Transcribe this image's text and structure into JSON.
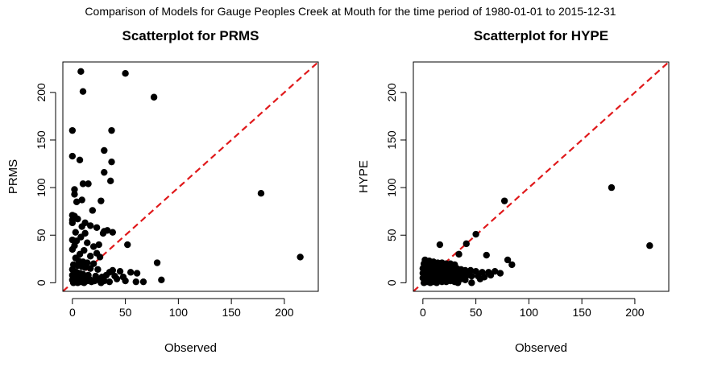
{
  "suptitle": "Comparison of Models for Gauge Peoples Creek at Mouth for the time period of 1980-01-01 to 2015-12-31",
  "chart_data": [
    {
      "type": "scatter",
      "title": "Scatterplot for PRMS",
      "xlabel": "Observed",
      "ylabel": "PRMS",
      "xlim": [
        -9,
        232
      ],
      "ylim": [
        -9,
        232
      ],
      "xticks": [
        0,
        50,
        100,
        150,
        200
      ],
      "yticks": [
        0,
        50,
        100,
        150,
        200
      ],
      "reference_line": {
        "type": "1:1",
        "color": "#e0191b",
        "style": "dashed"
      },
      "point_color": "#000000",
      "points": [
        [
          8,
          222
        ],
        [
          50,
          220
        ],
        [
          10,
          201
        ],
        [
          77,
          195
        ],
        [
          0,
          160
        ],
        [
          37,
          160
        ],
        [
          0,
          133
        ],
        [
          30,
          139
        ],
        [
          7,
          129
        ],
        [
          37,
          127
        ],
        [
          30,
          116
        ],
        [
          36,
          107
        ],
        [
          10,
          104
        ],
        [
          15,
          104
        ],
        [
          2,
          98
        ],
        [
          2,
          93
        ],
        [
          9,
          87
        ],
        [
          27,
          86
        ],
        [
          4,
          85
        ],
        [
          19,
          76
        ],
        [
          0,
          71
        ],
        [
          2,
          70
        ],
        [
          0,
          66
        ],
        [
          5,
          67
        ],
        [
          0,
          63
        ],
        [
          12,
          63
        ],
        [
          17,
          60
        ],
        [
          23,
          58
        ],
        [
          9,
          59
        ],
        [
          33,
          55
        ],
        [
          38,
          53
        ],
        [
          3,
          53
        ],
        [
          12,
          52
        ],
        [
          29,
          52
        ],
        [
          30,
          54
        ],
        [
          8,
          48
        ],
        [
          0,
          45
        ],
        [
          4,
          44
        ],
        [
          14,
          42
        ],
        [
          52,
          40
        ],
        [
          25,
          40
        ],
        [
          2,
          39
        ],
        [
          20,
          38
        ],
        [
          0,
          35
        ],
        [
          11,
          34
        ],
        [
          23,
          31
        ],
        [
          7,
          30
        ],
        [
          17,
          28
        ],
        [
          26,
          27
        ],
        [
          3,
          26
        ],
        [
          6,
          23
        ],
        [
          10,
          22
        ],
        [
          14,
          21
        ],
        [
          20,
          20
        ],
        [
          80,
          21
        ],
        [
          1,
          19
        ],
        [
          5,
          18
        ],
        [
          9,
          17
        ],
        [
          12,
          16
        ],
        [
          17,
          15
        ],
        [
          24,
          14
        ],
        [
          38,
          13
        ],
        [
          45,
          12
        ],
        [
          55,
          11
        ],
        [
          61,
          10
        ],
        [
          35,
          11
        ],
        [
          0,
          14
        ],
        [
          2,
          12
        ],
        [
          4,
          11
        ],
        [
          7,
          10
        ],
        [
          10,
          9
        ],
        [
          15,
          8
        ],
        [
          22,
          7
        ],
        [
          28,
          6
        ],
        [
          32,
          8
        ],
        [
          40,
          7
        ],
        [
          48,
          6
        ],
        [
          0,
          8
        ],
        [
          3,
          7
        ],
        [
          6,
          6
        ],
        [
          9,
          5
        ],
        [
          13,
          4
        ],
        [
          17,
          3
        ],
        [
          21,
          2
        ],
        [
          25,
          3
        ],
        [
          30,
          2
        ],
        [
          35,
          1
        ],
        [
          42,
          4
        ],
        [
          50,
          2
        ],
        [
          60,
          1
        ],
        [
          67,
          1
        ],
        [
          84,
          3
        ],
        [
          0,
          3
        ],
        [
          2,
          2
        ],
        [
          4,
          1
        ],
        [
          1,
          0
        ],
        [
          5,
          0
        ],
        [
          8,
          1
        ],
        [
          11,
          0
        ],
        [
          14,
          2
        ],
        [
          18,
          1
        ],
        [
          27,
          0
        ],
        [
          178,
          94
        ],
        [
          215,
          27
        ]
      ]
    },
    {
      "type": "scatter",
      "title": "Scatterplot for HYPE",
      "xlabel": "Observed",
      "ylabel": "HYPE",
      "xlim": [
        -9,
        232
      ],
      "ylim": [
        -9,
        232
      ],
      "xticks": [
        0,
        50,
        100,
        150,
        200
      ],
      "yticks": [
        0,
        50,
        100,
        150,
        200
      ],
      "reference_line": {
        "type": "1:1",
        "color": "#e0191b",
        "style": "dashed"
      },
      "point_color": "#000000",
      "points": [
        [
          178,
          100
        ],
        [
          77,
          86
        ],
        [
          50,
          51
        ],
        [
          16,
          40
        ],
        [
          41,
          41
        ],
        [
          214,
          39
        ],
        [
          34,
          30
        ],
        [
          60,
          29
        ],
        [
          80,
          24
        ],
        [
          84,
          19
        ],
        [
          2,
          24
        ],
        [
          6,
          23
        ],
        [
          10,
          22
        ],
        [
          14,
          21
        ],
        [
          18,
          21
        ],
        [
          22,
          20
        ],
        [
          26,
          20
        ],
        [
          30,
          19
        ],
        [
          1,
          20
        ],
        [
          4,
          18
        ],
        [
          8,
          18
        ],
        [
          12,
          17
        ],
        [
          16,
          17
        ],
        [
          20,
          16
        ],
        [
          24,
          16
        ],
        [
          28,
          15
        ],
        [
          32,
          15
        ],
        [
          36,
          14
        ],
        [
          40,
          13
        ],
        [
          45,
          13
        ],
        [
          50,
          12
        ],
        [
          56,
          11
        ],
        [
          62,
          11
        ],
        [
          68,
          12
        ],
        [
          73,
          10
        ],
        [
          0,
          15
        ],
        [
          3,
          14
        ],
        [
          6,
          13
        ],
        [
          9,
          13
        ],
        [
          12,
          12
        ],
        [
          15,
          12
        ],
        [
          18,
          11
        ],
        [
          21,
          11
        ],
        [
          24,
          10
        ],
        [
          27,
          10
        ],
        [
          30,
          9
        ],
        [
          34,
          9
        ],
        [
          38,
          8
        ],
        [
          42,
          8
        ],
        [
          46,
          7
        ],
        [
          52,
          7
        ],
        [
          58,
          6
        ],
        [
          0,
          10
        ],
        [
          3,
          9
        ],
        [
          6,
          8
        ],
        [
          9,
          8
        ],
        [
          12,
          7
        ],
        [
          15,
          7
        ],
        [
          18,
          6
        ],
        [
          21,
          6
        ],
        [
          24,
          5
        ],
        [
          28,
          5
        ],
        [
          32,
          4
        ],
        [
          36,
          4
        ],
        [
          40,
          3
        ],
        [
          0,
          5
        ],
        [
          3,
          4
        ],
        [
          6,
          3
        ],
        [
          9,
          3
        ],
        [
          12,
          2
        ],
        [
          15,
          2
        ],
        [
          18,
          1
        ],
        [
          22,
          1
        ],
        [
          26,
          2
        ],
        [
          30,
          1
        ],
        [
          1,
          0
        ],
        [
          4,
          1
        ],
        [
          7,
          0
        ],
        [
          10,
          1
        ],
        [
          13,
          0
        ],
        [
          33,
          0
        ],
        [
          46,
          0
        ],
        [
          54,
          4
        ],
        [
          64,
          8
        ]
      ]
    }
  ]
}
